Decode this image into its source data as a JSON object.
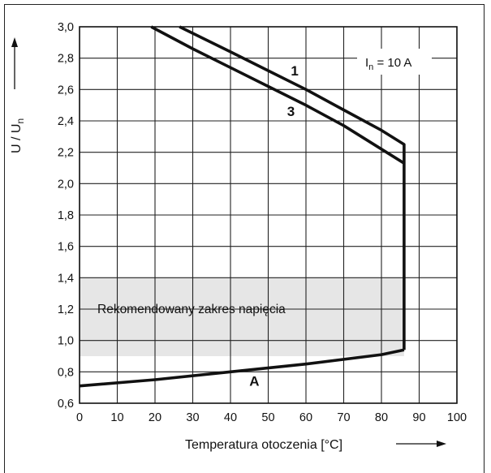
{
  "chart_data": {
    "type": "line",
    "xlabel": "Temperatura otoczenia [°C]",
    "ylabel": "U / Un",
    "xlim": [
      0,
      100
    ],
    "ylim": [
      0.6,
      3.0
    ],
    "x_ticks": [
      "0",
      "10",
      "20",
      "30",
      "40",
      "50",
      "60",
      "70",
      "80",
      "90",
      "100"
    ],
    "y_ticks": [
      "0,6",
      "0,8",
      "1,0",
      "1,2",
      "1,4",
      "1,6",
      "1,8",
      "2,0",
      "2,2",
      "2,4",
      "2,6",
      "2,8",
      "3,0"
    ],
    "grid": true,
    "legend_text": "In = 10 A",
    "band": {
      "label": "Rekomendowany zakres napięcia",
      "ymin": 0.9,
      "ymax": 1.4,
      "xmin": 0,
      "xmax": 86,
      "color": "#e6e6e6"
    },
    "series": [
      {
        "name": "1",
        "points": [
          [
            26.5,
            3.0
          ],
          [
            40,
            2.84
          ],
          [
            50,
            2.72
          ],
          [
            60,
            2.6
          ],
          [
            70,
            2.47
          ],
          [
            80,
            2.34
          ],
          [
            86,
            2.25
          ],
          [
            86,
            0.94
          ]
        ]
      },
      {
        "name": "3",
        "points": [
          [
            19,
            3.0
          ],
          [
            30,
            2.86
          ],
          [
            40,
            2.74
          ],
          [
            50,
            2.62
          ],
          [
            60,
            2.5
          ],
          [
            70,
            2.37
          ],
          [
            80,
            2.22
          ],
          [
            86,
            2.13
          ]
        ]
      },
      {
        "name": "A",
        "points": [
          [
            0,
            0.71
          ],
          [
            20,
            0.75
          ],
          [
            40,
            0.8
          ],
          [
            60,
            0.85
          ],
          [
            80,
            0.91
          ],
          [
            86,
            0.94
          ]
        ]
      }
    ],
    "curve_labels": [
      {
        "text": "1",
        "x": 56,
        "y": 2.69
      },
      {
        "text": "3",
        "x": 55,
        "y": 2.43
      },
      {
        "text": "A",
        "x": 45,
        "y": 0.71
      }
    ]
  }
}
